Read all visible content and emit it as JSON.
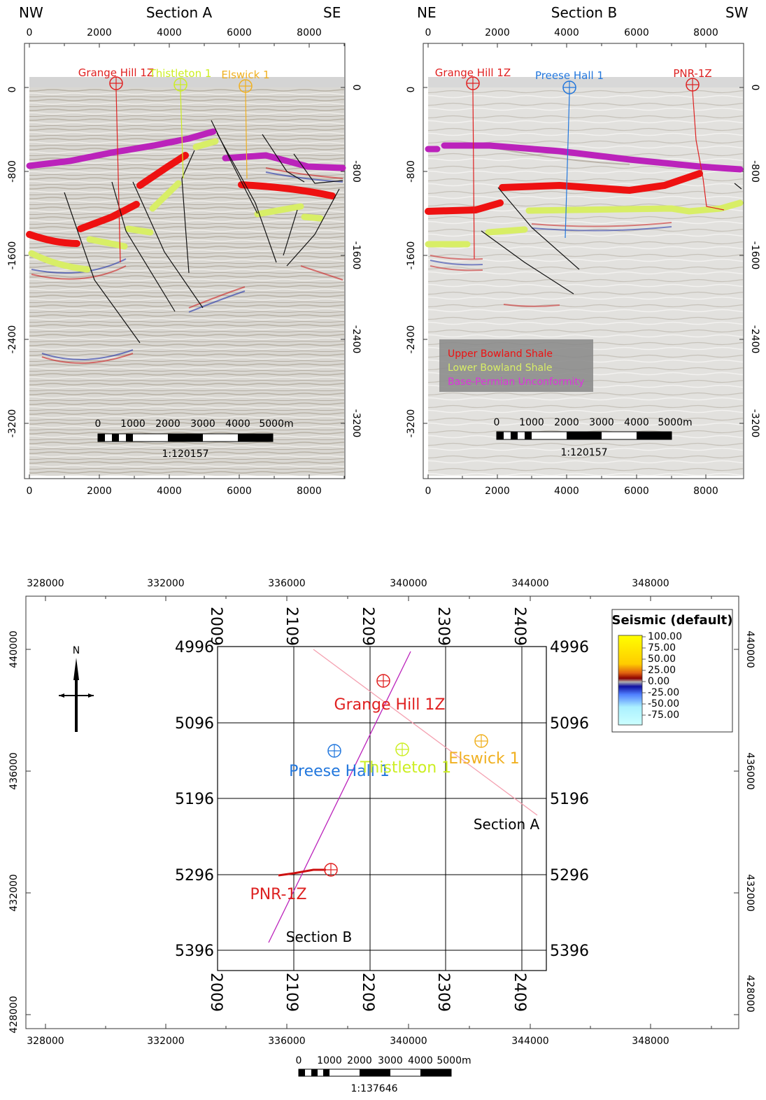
{
  "colors": {
    "upper_bowland": "#ee1111",
    "lower_bowland": "#d8ee66",
    "base_permian": "#bb22bb",
    "grange_hill": "#e02020",
    "thistleton": "#ccee22",
    "elswick": "#f0b020",
    "preese_hall": "#2277dd",
    "pnr": "#dd2222",
    "section_line_a": "#f4a0b0",
    "section_line_b": "#bb22bb"
  },
  "section_a": {
    "title": "Section A",
    "left_dir": "NW",
    "right_dir": "SE",
    "x_ticks": [
      "0",
      "2000",
      "4000",
      "6000",
      "8000"
    ],
    "y_ticks": [
      "0",
      "-800",
      "-1600",
      "-2400",
      "-3200"
    ],
    "wells": [
      {
        "name": "Grange Hill 1Z",
        "color_key": "grange_hill"
      },
      {
        "name": "Thistleton 1",
        "color_key": "thistleton"
      },
      {
        "name": "Elswick 1",
        "color_key": "elswick"
      }
    ],
    "scale": {
      "ticks": [
        "0",
        "1000",
        "2000",
        "3000",
        "4000",
        "5000m"
      ],
      "ratio": "1:120157"
    }
  },
  "section_b": {
    "title": "Section B",
    "left_dir": "NE",
    "right_dir": "SW",
    "x_ticks": [
      "0",
      "2000",
      "4000",
      "6000",
      "8000"
    ],
    "y_ticks": [
      "0",
      "-800",
      "-1600",
      "-2400",
      "-3200"
    ],
    "wells": [
      {
        "name": "Grange Hill 1Z",
        "color_key": "grange_hill"
      },
      {
        "name": "Preese Hall 1",
        "color_key": "preese_hall"
      },
      {
        "name": "PNR-1Z",
        "color_key": "pnr"
      }
    ],
    "scale": {
      "ticks": [
        "0",
        "1000",
        "2000",
        "3000",
        "4000",
        "5000m"
      ],
      "ratio": "1:120157"
    }
  },
  "legend": {
    "items": [
      {
        "label": "Upper Bowland Shale",
        "color_key": "upper_bowland"
      },
      {
        "label": "Lower Bowland Shale",
        "color_key": "lower_bowland"
      },
      {
        "label": "Base-Permian Unconformity",
        "color_key": "base_permian"
      }
    ]
  },
  "map": {
    "x_ticks": [
      "328000",
      "332000",
      "336000",
      "340000",
      "344000",
      "348000"
    ],
    "y_ticks": [
      "440000",
      "436000",
      "432000",
      "428000"
    ],
    "inner_x_ticks": [
      "2009",
      "2109",
      "2209",
      "2309",
      "2409"
    ],
    "inner_y_ticks": [
      "4996",
      "5096",
      "5196",
      "5296",
      "5396"
    ],
    "north_label": "N",
    "wells": {
      "grange_hill": "Grange Hill 1Z",
      "preese_hall": "Preese Hall 1",
      "thistleton": "Thistleton 1",
      "elswick": "Elswick 1",
      "pnr": "PNR-1Z"
    },
    "section_a_label": "Section A",
    "section_b_label": "Section B",
    "colorbar": {
      "title": "Seismic (default)",
      "ticks": [
        "100.00",
        "75.00",
        "50.00",
        "25.00",
        "0.00",
        "-25.00",
        "-50.00",
        "-75.00"
      ]
    },
    "scale": {
      "ticks": [
        "0",
        "1000",
        "2000",
        "3000",
        "4000",
        "5000m"
      ],
      "ratio": "1:137646"
    }
  }
}
